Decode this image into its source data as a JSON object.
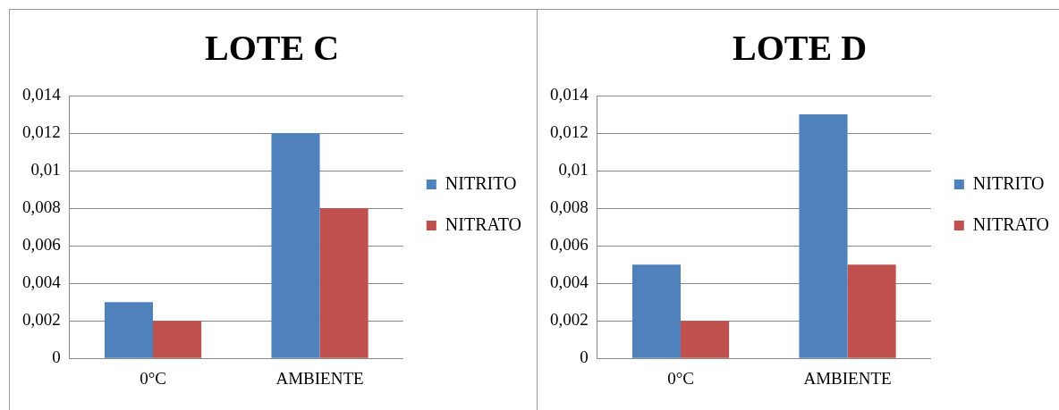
{
  "chart_data": [
    {
      "type": "bar",
      "title": "LOTE C",
      "categories": [
        "0°C",
        "AMBIENTE"
      ],
      "series": [
        {
          "name": "NITRITO",
          "color": "#4f81bd",
          "values": [
            0.003,
            0.012
          ]
        },
        {
          "name": "NITRATO",
          "color": "#c0504d",
          "values": [
            0.002,
            0.008
          ]
        }
      ],
      "ylim": [
        0,
        0.014
      ],
      "yticks": [
        0,
        {
          "value": 0.002,
          "label": "0,002"
        },
        {
          "value": 0.004,
          "label": "0,004"
        },
        {
          "value": 0.006,
          "label": "0,006"
        },
        {
          "value": 0.008,
          "label": "0,008"
        },
        {
          "value": 0.01,
          "label": "0,01"
        },
        {
          "value": 0.012,
          "label": "0,012"
        },
        {
          "value": 0.014,
          "label": "0,014"
        }
      ],
      "grid": "y",
      "legend": "right"
    },
    {
      "type": "bar",
      "title": "LOTE D",
      "categories": [
        "0°C",
        "AMBIENTE"
      ],
      "series": [
        {
          "name": "NITRITO",
          "color": "#4f81bd",
          "values": [
            0.005,
            0.013
          ]
        },
        {
          "name": "NITRATO",
          "color": "#c0504d",
          "values": [
            0.002,
            0.005
          ]
        }
      ],
      "ylim": [
        0,
        0.014
      ],
      "yticks": [
        0,
        {
          "value": 0.002,
          "label": "0,002"
        },
        {
          "value": 0.004,
          "label": "0,004"
        },
        {
          "value": 0.006,
          "label": "0,006"
        },
        {
          "value": 0.008,
          "label": "0,008"
        },
        {
          "value": 0.01,
          "label": "0,01"
        },
        {
          "value": 0.012,
          "label": "0,012"
        },
        {
          "value": 0.014,
          "label": "0,014"
        }
      ],
      "grid": "y",
      "legend": "right"
    }
  ]
}
